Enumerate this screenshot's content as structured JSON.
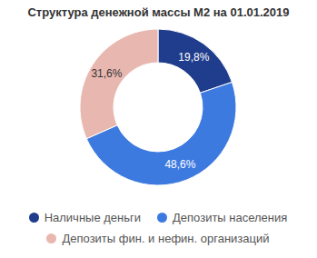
{
  "chart_data": {
    "type": "donut",
    "title": "Структура денежной массы М2 на 01.01.2019",
    "categories": [
      "Наличные деньги",
      "Депозиты населения",
      "Депозиты фин. и нефин. организаций"
    ],
    "values": [
      19.8,
      48.6,
      31.6
    ],
    "value_labels": [
      "19,8%",
      "48,6%",
      "31,6%"
    ],
    "colors": [
      "#1f3d8c",
      "#3d7ae0",
      "#e8b8b0"
    ],
    "data_labels": true,
    "legend": "bottom"
  }
}
